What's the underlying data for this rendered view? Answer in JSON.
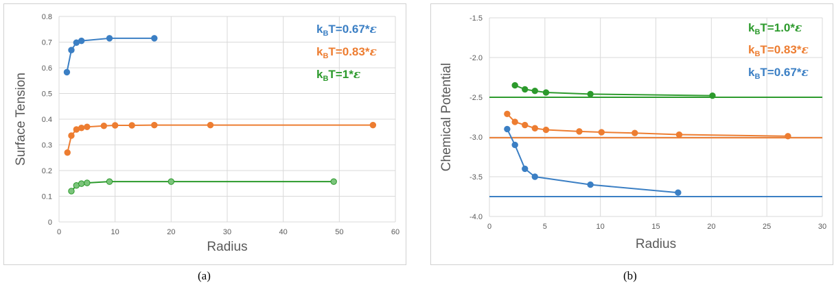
{
  "chart_data": [
    {
      "type": "line",
      "panel_label": "(a)",
      "xlabel": "Radius",
      "ylabel": "Surface Tension",
      "xlim": [
        0,
        60
      ],
      "ylim": [
        0,
        0.8
      ],
      "xticks": [
        0,
        10,
        20,
        30,
        40,
        50,
        60
      ],
      "yticks": [
        0,
        0.1,
        0.2,
        0.3,
        0.4,
        0.5,
        0.6,
        0.7,
        0.8
      ],
      "grid": true,
      "legend_position": "top-right",
      "series": [
        {
          "name": "kBT=0.67*ε",
          "label_main": "k",
          "label_sub": "B",
          "label_rest": "T=0.67*",
          "label_eps": "ε",
          "color": "#3b7fc4",
          "x": [
            1.4,
            2.2,
            3.1,
            4.0,
            9.0,
            17.0
          ],
          "y": [
            0.583,
            0.669,
            0.698,
            0.705,
            0.715,
            0.715
          ]
        },
        {
          "name": "kBT=0.83*ε",
          "label_main": "k",
          "label_sub": "B",
          "label_rest": "T=0.83*",
          "label_eps": "ε",
          "color": "#ed7d31",
          "x": [
            1.5,
            2.2,
            3.1,
            4.0,
            5.0,
            8.0,
            10.0,
            13.0,
            17.0,
            27.0,
            56.0
          ],
          "y": [
            0.27,
            0.336,
            0.36,
            0.366,
            0.37,
            0.374,
            0.376,
            0.376,
            0.377,
            0.377,
            0.377
          ]
        },
        {
          "name": "kBT=1*ε",
          "label_main": "k",
          "label_sub": "B",
          "label_rest": "T=1*",
          "label_eps": "ε",
          "color": "#2c9a2c",
          "x": [
            2.2,
            3.1,
            4.0,
            5.0,
            9.0,
            20.0,
            49.0
          ],
          "y": [
            0.12,
            0.142,
            0.149,
            0.152,
            0.157,
            0.157,
            0.157
          ]
        }
      ]
    },
    {
      "type": "line",
      "panel_label": "(b)",
      "xlabel": "Radius",
      "ylabel": "Chemical Potential",
      "xlim": [
        0,
        30
      ],
      "ylim": [
        -4.0,
        -1.5
      ],
      "xticks": [
        0,
        5,
        10,
        15,
        20,
        25,
        30
      ],
      "yticks": [
        -1.5,
        -2.0,
        -2.5,
        -3.0,
        -3.5,
        -4.0
      ],
      "grid": true,
      "legend_position": "top-right",
      "series": [
        {
          "name": "kBT=1.0*ε",
          "label_main": "k",
          "label_sub": "B",
          "label_rest": "T=1.0*",
          "label_eps": "ε",
          "color": "#2c9a2c",
          "x": [
            2.3,
            3.2,
            4.1,
            5.1,
            9.1,
            20.1
          ],
          "y": [
            -2.35,
            -2.4,
            -2.42,
            -2.44,
            -2.46,
            -2.48
          ],
          "reference_y": -2.5
        },
        {
          "name": "kBT=0.83*ε",
          "label_main": "k",
          "label_sub": "B",
          "label_rest": "T=0.83*",
          "label_eps": "ε",
          "color": "#ed7d31",
          "x": [
            1.6,
            2.3,
            3.2,
            4.1,
            5.1,
            8.1,
            10.1,
            13.1,
            17.1,
            26.9
          ],
          "y": [
            -2.71,
            -2.81,
            -2.85,
            -2.89,
            -2.91,
            -2.93,
            -2.94,
            -2.95,
            -2.97,
            -2.99
          ],
          "reference_y": -3.01
        },
        {
          "name": "kBT=0.67*ε",
          "label_main": "k",
          "label_sub": "B",
          "label_rest": "T=0.67*",
          "label_eps": "ε",
          "color": "#3b7fc4",
          "x": [
            1.6,
            2.3,
            3.2,
            4.1,
            9.1,
            17.0
          ],
          "y": [
            -2.9,
            -3.1,
            -3.4,
            -3.5,
            -3.6,
            -3.7
          ],
          "reference_y": -3.75
        }
      ]
    }
  ]
}
